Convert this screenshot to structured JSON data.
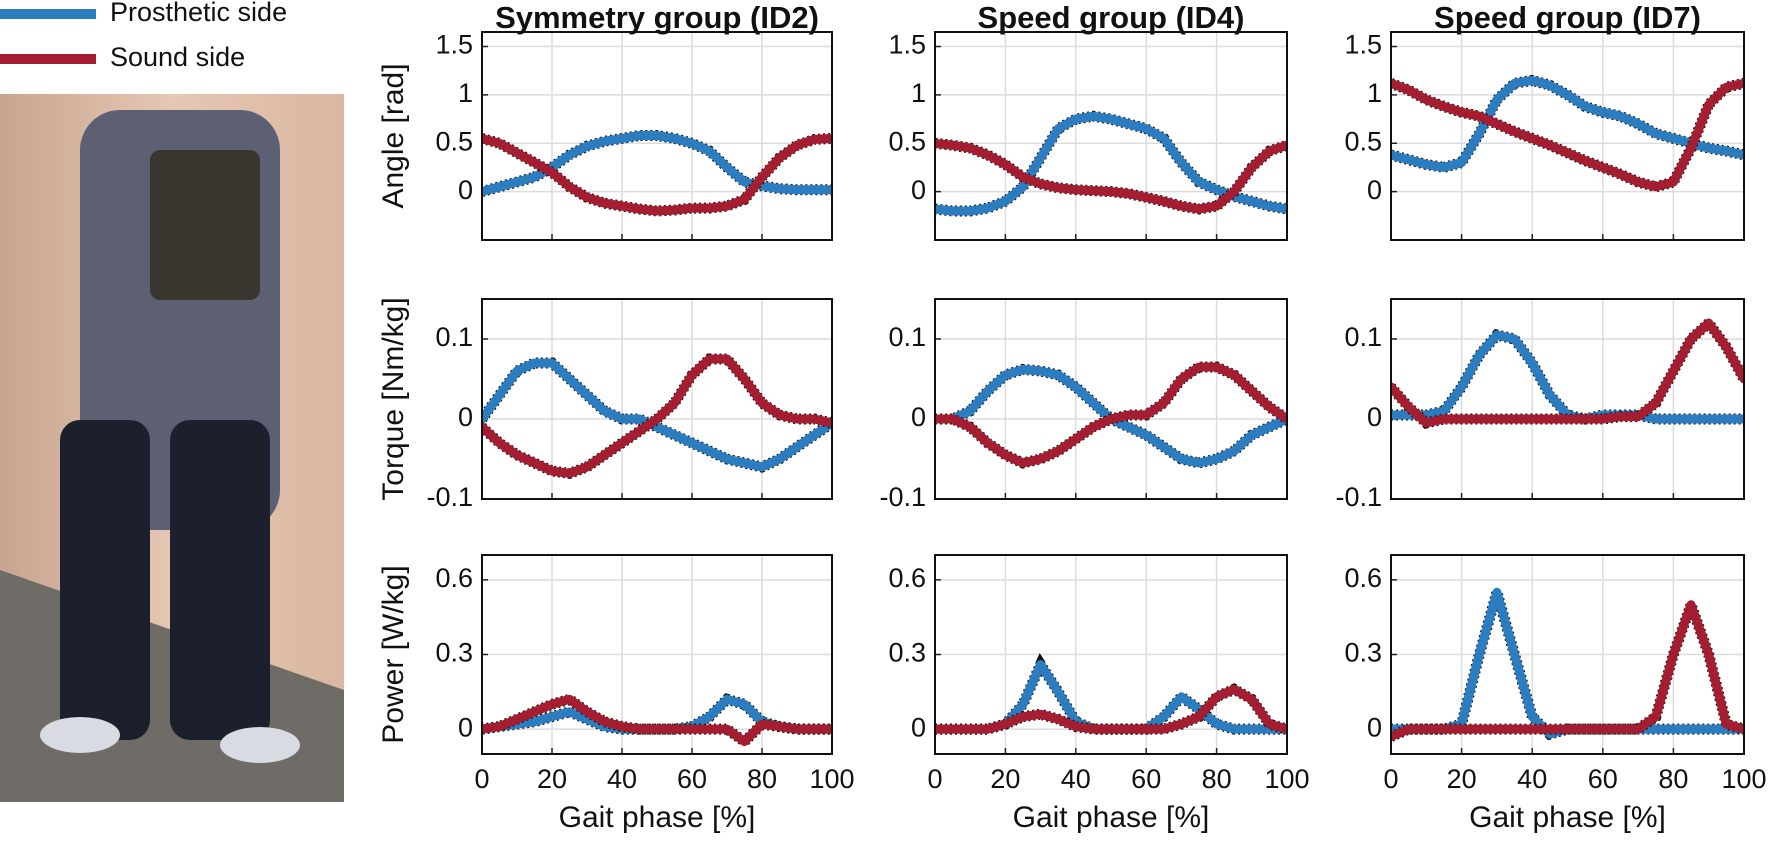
{
  "chart_data": [
    {
      "type": "line",
      "title": "Symmetry group (ID2)",
      "ylabel": "Angle [rad]",
      "x": [
        0,
        5,
        10,
        15,
        20,
        25,
        30,
        35,
        40,
        45,
        50,
        55,
        60,
        65,
        70,
        75,
        80,
        85,
        90,
        95,
        100
      ],
      "xlim": [
        0,
        100
      ],
      "xticks": [
        0,
        20,
        40,
        60,
        80,
        100
      ],
      "ylim": [
        -0.5,
        1.65
      ],
      "yticks": [
        0,
        0.5,
        1,
        1.5
      ],
      "grid": true,
      "series": [
        {
          "name": "Prosthetic side",
          "color": "#2c7cc0",
          "values": [
            0,
            0.05,
            0.1,
            0.15,
            0.25,
            0.38,
            0.47,
            0.52,
            0.55,
            0.58,
            0.58,
            0.55,
            0.5,
            0.42,
            0.25,
            0.1,
            0.06,
            0.03,
            0.02,
            0.02,
            0.02
          ]
        },
        {
          "name": "Sound side",
          "color": "#a51d30",
          "values": [
            0.55,
            0.5,
            0.4,
            0.3,
            0.2,
            0.05,
            -0.06,
            -0.12,
            -0.15,
            -0.18,
            -0.2,
            -0.19,
            -0.17,
            -0.17,
            -0.15,
            -0.08,
            0.15,
            0.35,
            0.48,
            0.54,
            0.55
          ]
        }
      ]
    },
    {
      "type": "line",
      "title": "Speed group (ID4)",
      "x": [
        0,
        5,
        10,
        15,
        20,
        25,
        30,
        35,
        40,
        45,
        50,
        55,
        60,
        65,
        70,
        75,
        80,
        85,
        90,
        95,
        100
      ],
      "xlim": [
        0,
        100
      ],
      "xticks": [
        0,
        20,
        40,
        60,
        80,
        100
      ],
      "ylim": [
        -0.5,
        1.65
      ],
      "yticks": [
        0,
        0.5,
        1,
        1.5
      ],
      "grid": true,
      "series": [
        {
          "name": "Prosthetic side",
          "color": "#2c7cc0",
          "values": [
            -0.18,
            -0.2,
            -0.2,
            -0.17,
            -0.1,
            0.05,
            0.35,
            0.65,
            0.75,
            0.78,
            0.75,
            0.7,
            0.65,
            0.55,
            0.3,
            0.1,
            0.02,
            -0.05,
            -0.1,
            -0.15,
            -0.18
          ]
        },
        {
          "name": "Sound side",
          "color": "#a51d30",
          "values": [
            0.5,
            0.48,
            0.45,
            0.38,
            0.28,
            0.15,
            0.08,
            0.04,
            0.02,
            0.01,
            0,
            -0.02,
            -0.06,
            -0.1,
            -0.15,
            -0.18,
            -0.15,
            0,
            0.25,
            0.42,
            0.48
          ]
        }
      ]
    },
    {
      "type": "line",
      "title": "Speed group (ID7)",
      "x": [
        0,
        5,
        10,
        15,
        20,
        25,
        30,
        35,
        40,
        45,
        50,
        55,
        60,
        65,
        70,
        75,
        80,
        85,
        90,
        95,
        100
      ],
      "xlim": [
        0,
        100
      ],
      "xticks": [
        0,
        20,
        40,
        60,
        80,
        100
      ],
      "ylim": [
        -0.5,
        1.65
      ],
      "yticks": [
        0,
        0.5,
        1,
        1.5
      ],
      "grid": true,
      "series": [
        {
          "name": "Prosthetic side",
          "color": "#2c7cc0",
          "values": [
            0.38,
            0.33,
            0.28,
            0.25,
            0.3,
            0.6,
            0.95,
            1.12,
            1.15,
            1.1,
            1.0,
            0.88,
            0.82,
            0.78,
            0.7,
            0.6,
            0.55,
            0.5,
            0.45,
            0.42,
            0.38
          ]
        },
        {
          "name": "Sound side",
          "color": "#a51d30",
          "values": [
            1.12,
            1.05,
            0.95,
            0.88,
            0.82,
            0.78,
            0.7,
            0.62,
            0.55,
            0.48,
            0.4,
            0.32,
            0.25,
            0.18,
            0.1,
            0.05,
            0.1,
            0.45,
            0.9,
            1.08,
            1.12
          ]
        }
      ]
    },
    {
      "type": "line",
      "ylabel": "Torque [Nm/kg]",
      "x": [
        0,
        5,
        10,
        15,
        20,
        25,
        30,
        35,
        40,
        45,
        50,
        55,
        60,
        65,
        70,
        75,
        80,
        85,
        90,
        95,
        100
      ],
      "xlim": [
        0,
        100
      ],
      "xticks": [
        0,
        20,
        40,
        60,
        80,
        100
      ],
      "ylim": [
        -0.1,
        0.15
      ],
      "yticks": [
        -0.1,
        0,
        0.1
      ],
      "grid": true,
      "series": [
        {
          "name": "Prosthetic side",
          "color": "#2c7cc0",
          "values": [
            0,
            0.03,
            0.06,
            0.07,
            0.07,
            0.05,
            0.03,
            0.01,
            0,
            0,
            -0.01,
            -0.02,
            -0.03,
            -0.04,
            -0.05,
            -0.055,
            -0.06,
            -0.05,
            -0.035,
            -0.02,
            -0.005
          ]
        },
        {
          "name": "Sound side",
          "color": "#a51d30",
          "values": [
            -0.01,
            -0.03,
            -0.045,
            -0.055,
            -0.065,
            -0.068,
            -0.06,
            -0.045,
            -0.03,
            -0.015,
            0,
            0.02,
            0.055,
            0.075,
            0.075,
            0.05,
            0.02,
            0.005,
            0,
            0,
            -0.005
          ]
        }
      ]
    },
    {
      "type": "line",
      "x": [
        0,
        5,
        10,
        15,
        20,
        25,
        30,
        35,
        40,
        45,
        50,
        55,
        60,
        65,
        70,
        75,
        80,
        85,
        90,
        95,
        100
      ],
      "xlim": [
        0,
        100
      ],
      "xticks": [
        0,
        20,
        40,
        60,
        80,
        100
      ],
      "ylim": [
        -0.1,
        0.15
      ],
      "yticks": [
        -0.1,
        0,
        0.1
      ],
      "grid": true,
      "series": [
        {
          "name": "Prosthetic side",
          "color": "#2c7cc0",
          "values": [
            0,
            0,
            0.01,
            0.035,
            0.055,
            0.062,
            0.06,
            0.055,
            0.04,
            0.02,
            0,
            -0.01,
            -0.02,
            -0.035,
            -0.05,
            -0.055,
            -0.05,
            -0.04,
            -0.02,
            -0.01,
            0
          ]
        },
        {
          "name": "Sound side",
          "color": "#a51d30",
          "values": [
            0,
            0,
            -0.01,
            -0.03,
            -0.045,
            -0.055,
            -0.05,
            -0.04,
            -0.025,
            -0.01,
            0,
            0.005,
            0.005,
            0.02,
            0.05,
            0.065,
            0.065,
            0.055,
            0.035,
            0.015,
            0
          ]
        }
      ]
    },
    {
      "type": "line",
      "x": [
        0,
        5,
        10,
        15,
        20,
        25,
        30,
        35,
        40,
        45,
        50,
        55,
        60,
        65,
        70,
        75,
        80,
        85,
        90,
        95,
        100
      ],
      "xlim": [
        0,
        100
      ],
      "xticks": [
        0,
        20,
        40,
        60,
        80,
        100
      ],
      "ylim": [
        -0.1,
        0.15
      ],
      "yticks": [
        -0.1,
        0,
        0.1
      ],
      "grid": true,
      "series": [
        {
          "name": "Prosthetic side",
          "color": "#2c7cc0",
          "values": [
            0.005,
            0.005,
            0.005,
            0.01,
            0.04,
            0.08,
            0.105,
            0.1,
            0.07,
            0.03,
            0.005,
            0,
            0.005,
            0.005,
            0.005,
            0,
            0,
            0,
            0,
            0,
            0
          ]
        },
        {
          "name": "Sound side",
          "color": "#a51d30",
          "values": [
            0.04,
            0.015,
            -0.005,
            0,
            0,
            0,
            0,
            0,
            0,
            0,
            0,
            0,
            0,
            0.003,
            0.003,
            0.02,
            0.06,
            0.1,
            0.12,
            0.09,
            0.05
          ]
        }
      ]
    },
    {
      "type": "line",
      "ylabel": "Power [W/kg]",
      "xlabel": "Gait phase [%]",
      "x": [
        0,
        5,
        10,
        15,
        20,
        25,
        30,
        35,
        40,
        45,
        50,
        55,
        60,
        65,
        70,
        75,
        80,
        85,
        90,
        95,
        100
      ],
      "xlim": [
        0,
        100
      ],
      "xticks": [
        0,
        20,
        40,
        60,
        80,
        100
      ],
      "ylim": [
        -0.1,
        0.7
      ],
      "yticks": [
        0,
        0.3,
        0.6
      ],
      "grid": true,
      "series": [
        {
          "name": "Prosthetic side",
          "color": "#2c7cc0",
          "values": [
            0,
            0.01,
            0.02,
            0.03,
            0.05,
            0.07,
            0.04,
            0.01,
            0,
            0,
            0,
            0,
            0.01,
            0.05,
            0.12,
            0.1,
            0.03,
            0.01,
            0,
            0,
            0
          ]
        },
        {
          "name": "Sound side",
          "color": "#a51d30",
          "values": [
            0,
            0.01,
            0.04,
            0.07,
            0.1,
            0.12,
            0.07,
            0.03,
            0.01,
            0,
            0,
            0,
            0,
            0,
            0,
            -0.05,
            0.02,
            0.01,
            0,
            0,
            0
          ]
        }
      ]
    },
    {
      "type": "line",
      "xlabel": "Gait phase [%]",
      "x": [
        0,
        5,
        10,
        15,
        20,
        25,
        30,
        35,
        40,
        45,
        50,
        55,
        60,
        65,
        70,
        75,
        80,
        85,
        90,
        95,
        100
      ],
      "xlim": [
        0,
        100
      ],
      "xticks": [
        0,
        20,
        40,
        60,
        80,
        100
      ],
      "ylim": [
        -0.1,
        0.7
      ],
      "yticks": [
        0,
        0.3,
        0.6
      ],
      "grid": true,
      "series": [
        {
          "name": "Prosthetic side",
          "color": "#2c7cc0",
          "values": [
            0,
            0,
            0,
            0,
            0.02,
            0.1,
            0.26,
            0.15,
            0.03,
            0,
            0,
            0,
            0,
            0.05,
            0.13,
            0.08,
            0.02,
            0,
            0,
            0,
            0
          ]
        },
        {
          "name": "Sound side",
          "color": "#a51d30",
          "values": [
            0,
            0,
            0,
            0,
            0.02,
            0.05,
            0.06,
            0.04,
            0.01,
            0,
            0,
            0,
            0,
            0,
            0.02,
            0.05,
            0.13,
            0.16,
            0.12,
            0.02,
            0
          ]
        }
      ]
    },
    {
      "type": "line",
      "xlabel": "Gait phase [%]",
      "x": [
        0,
        5,
        10,
        15,
        20,
        25,
        30,
        35,
        40,
        45,
        50,
        55,
        60,
        65,
        70,
        75,
        80,
        85,
        90,
        95,
        100
      ],
      "xlim": [
        0,
        100
      ],
      "xticks": [
        0,
        20,
        40,
        60,
        80,
        100
      ],
      "ylim": [
        -0.1,
        0.7
      ],
      "yticks": [
        0,
        0.3,
        0.6
      ],
      "grid": true,
      "series": [
        {
          "name": "Prosthetic side",
          "color": "#2c7cc0",
          "values": [
            0,
            0,
            0,
            0,
            0.02,
            0.3,
            0.55,
            0.3,
            0.05,
            -0.02,
            0,
            0,
            0,
            0,
            0,
            0,
            0,
            0,
            0,
            0,
            0
          ]
        },
        {
          "name": "Sound side",
          "color": "#a51d30",
          "values": [
            -0.03,
            0,
            0,
            0,
            0,
            0,
            0,
            0,
            0,
            0,
            0,
            0,
            0,
            0,
            0,
            0.05,
            0.3,
            0.5,
            0.3,
            0.02,
            0
          ]
        }
      ]
    }
  ]
}
